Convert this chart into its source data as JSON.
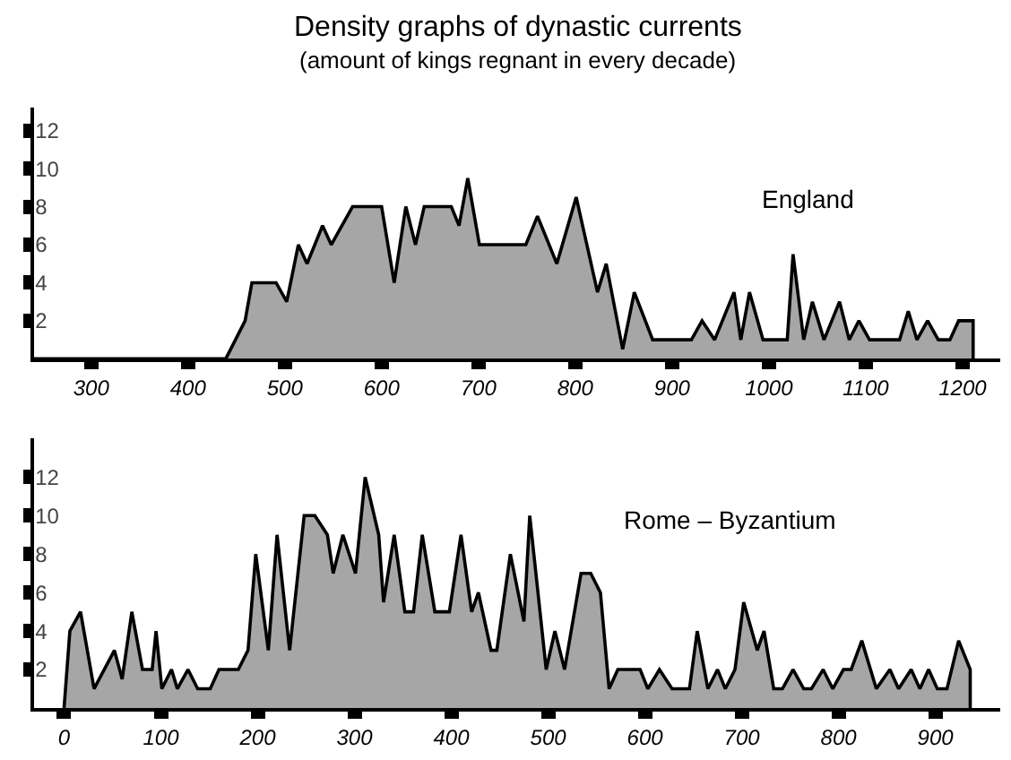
{
  "chart_data": [
    {
      "type": "area",
      "title": "Density graphs of dynastic currents",
      "subtitle": "(amount of kings regnant in every decade)",
      "xlim": [
        241,
        1239
      ],
      "ylim": [
        0,
        13.2
      ],
      "xticks": [
        300,
        400,
        500,
        600,
        700,
        800,
        900,
        1000,
        1100,
        1200
      ],
      "yticks": [
        2,
        4,
        6,
        8,
        10,
        12
      ],
      "grid": false,
      "legend": false,
      "series": [
        {
          "name": "England",
          "color": "#a6a6a6",
          "x": [
            241,
            439,
            459,
            466,
            491,
            502,
            514,
            523,
            539,
            548,
            570,
            600,
            613,
            625,
            635,
            644,
            672,
            680,
            689,
            701,
            749,
            761,
            781,
            801,
            823,
            832,
            849,
            861,
            880,
            920,
            931,
            944,
            964,
            971,
            980,
            994,
            1019,
            1025,
            1036,
            1045,
            1057,
            1073,
            1083,
            1093,
            1104,
            1135,
            1144,
            1153,
            1164,
            1175,
            1187,
            1196,
            1211,
            1211
          ],
          "values": [
            0,
            0,
            2,
            4,
            4,
            3,
            6,
            5,
            7,
            6,
            8,
            8,
            4,
            8,
            6,
            8,
            8,
            7,
            9.5,
            6,
            6,
            7.5,
            5,
            8.5,
            3.5,
            5,
            0.5,
            3.5,
            1,
            1,
            2,
            1,
            3.5,
            1,
            3.5,
            1,
            1,
            5.5,
            1,
            3,
            1,
            3,
            1,
            2,
            1,
            1,
            2.5,
            1,
            2,
            1,
            1,
            2,
            2,
            0
          ]
        }
      ]
    },
    {
      "type": "area",
      "xlim": [
        -31,
        967
      ],
      "ylim": [
        0,
        14
      ],
      "xticks": [
        0,
        100,
        200,
        300,
        400,
        500,
        600,
        700,
        800,
        900
      ],
      "yticks": [
        2,
        4,
        6,
        8,
        10,
        12
      ],
      "grid": false,
      "legend": false,
      "series": [
        {
          "name": "Rome – Byzantium",
          "color": "#a6a6a6",
          "x": [
            0,
            6,
            17,
            31,
            52,
            60,
            70,
            81,
            91,
            95,
            101,
            111,
            117,
            128,
            138,
            151,
            160,
            180,
            190,
            198,
            211,
            220,
            233,
            248,
            259,
            272,
            278,
            288,
            301,
            311,
            325,
            330,
            341,
            352,
            361,
            370,
            383,
            398,
            410,
            421,
            428,
            441,
            447,
            461,
            475,
            481,
            498,
            507,
            517,
            534,
            544,
            554,
            563,
            572,
            595,
            603,
            615,
            628,
            646,
            654,
            665,
            675,
            683,
            693,
            702,
            716,
            723,
            733,
            742,
            753,
            764,
            772,
            784,
            794,
            805,
            813,
            824,
            839,
            853,
            862,
            875,
            884,
            893,
            902,
            912,
            924,
            936,
            936
          ],
          "values": [
            0,
            4,
            5,
            1,
            3,
            1.5,
            5,
            2,
            2,
            4,
            1,
            2,
            1,
            2,
            1,
            1,
            2,
            2,
            3,
            8,
            3,
            9,
            3,
            10,
            10,
            9,
            7,
            9,
            7,
            12,
            9,
            5.5,
            9,
            5,
            5,
            9,
            5,
            5,
            9,
            5,
            6,
            3,
            3,
            8,
            4.5,
            10,
            2,
            4,
            2,
            7,
            7,
            6,
            1,
            2,
            2,
            1,
            2,
            1,
            1,
            4,
            1,
            2,
            1,
            2,
            5.5,
            3,
            4,
            1,
            1,
            2,
            1,
            1,
            2,
            1,
            2,
            2,
            3.5,
            1,
            2,
            1,
            2,
            1,
            2,
            1,
            1,
            3.5,
            2,
            0
          ]
        }
      ]
    }
  ]
}
